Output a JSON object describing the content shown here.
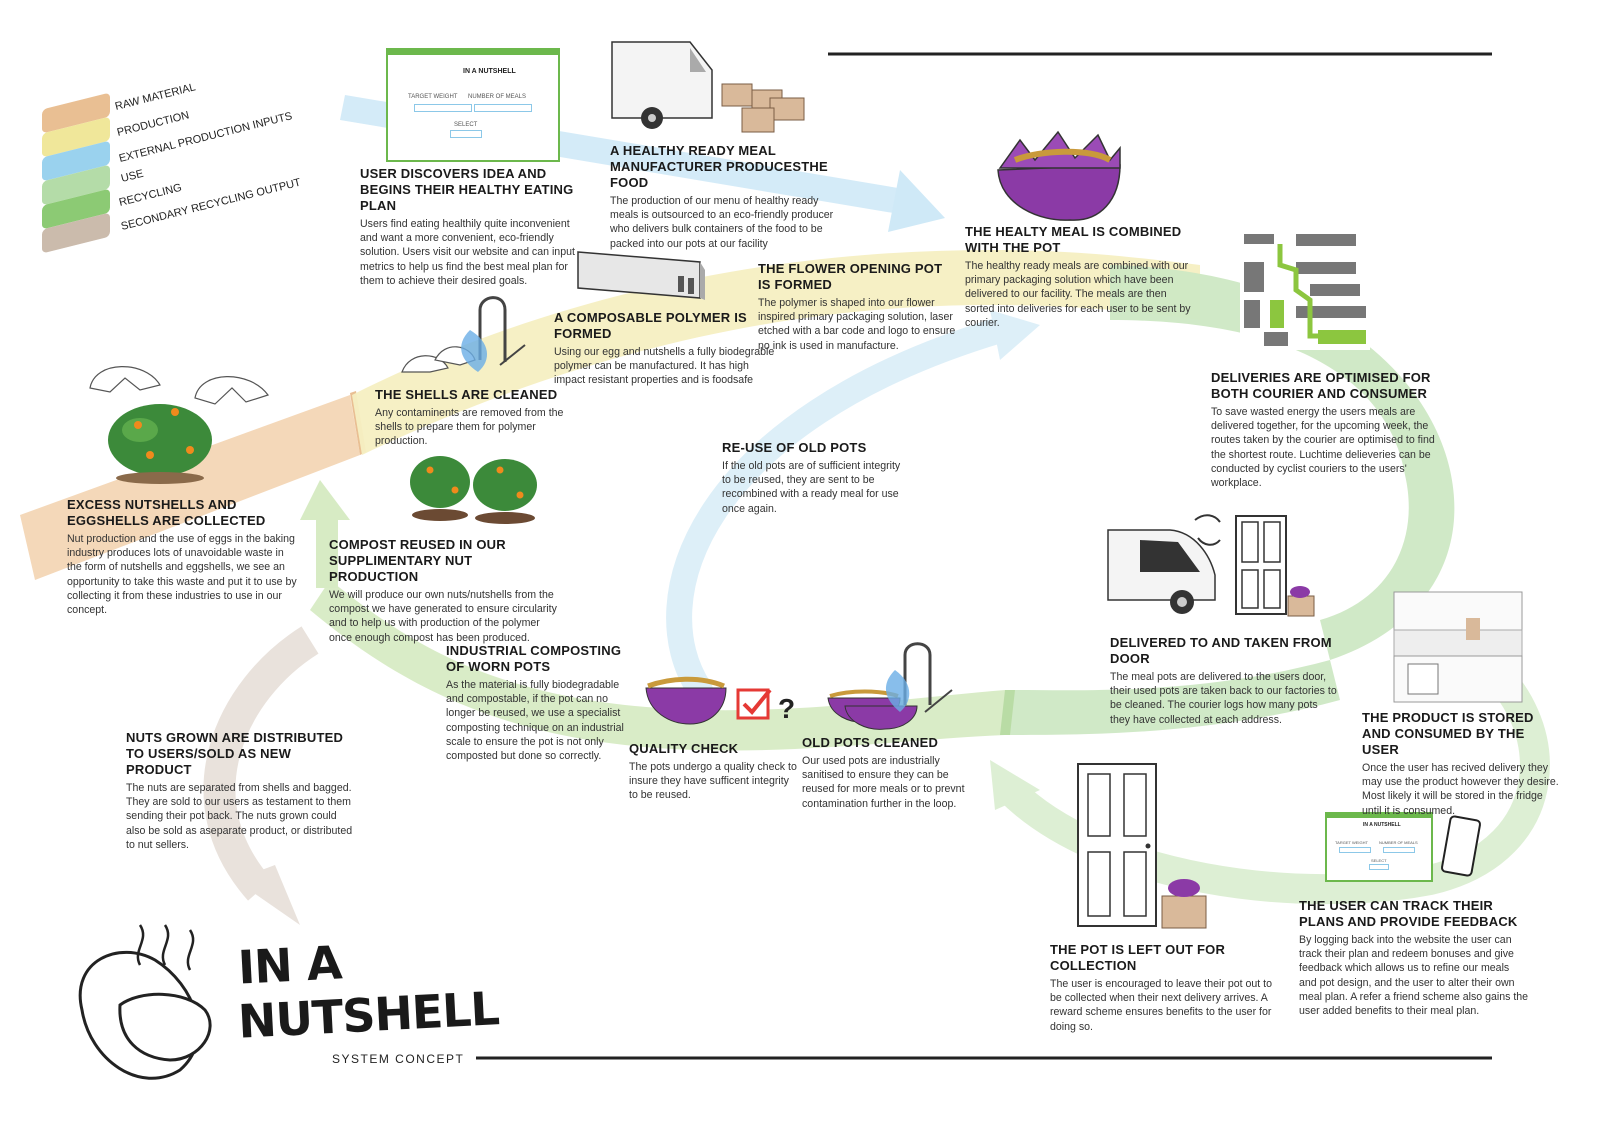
{
  "legend": {
    "items": [
      {
        "label": "RAW MATERIAL",
        "color": "#e9bf93"
      },
      {
        "label": "PRODUCTION",
        "color": "#f0e79a"
      },
      {
        "label": "EXTERNAL PRODUCTION INPUTS",
        "color": "#9ad2ee"
      },
      {
        "label": "USE",
        "color": "#b4dca8"
      },
      {
        "label": "RECYCLING",
        "color": "#8cca74"
      },
      {
        "label": "SECONDARY RECYCLING OUTPUT",
        "color": "#cbbbac"
      }
    ]
  },
  "ui_mockup": {
    "logo_text": "IN A NUTSHELL",
    "field1_label": "TARGET WEIGHT",
    "field2_label": "NUMBER OF MEALS",
    "button_label": "SELECT"
  },
  "phone_mockup": {
    "logo_text": "IN A NUTSHELL",
    "field1_label": "TARGET WEIGHT",
    "field2_label": "NUMBER OF MEALS",
    "button_label": "SELECT"
  },
  "steps": {
    "user_discovers": {
      "title": "USER DISCOVERS IDEA AND BEGINS THEIR HEALTHY EATING PLAN",
      "text": "Users find eating healthily quite inconvenient and want a more convenient, eco-friendly solution. Users visit our website and can input metrics to help us find the best meal plan for them to achieve their desired goals."
    },
    "manufacturer": {
      "title": "A HEALTHY READY MEAL MANUFACTURER PRODUCESTHE FOOD",
      "text": "The production of our menu of healthy ready meals is outsourced to an eco-friendly producer who delivers bulk containers of the food to be packed into our pots at our facility"
    },
    "meal_combined": {
      "title": "THE HEALTY MEAL IS COMBINED WITH THE POT",
      "text": "The healthy ready meals are combined with our primary packaging solution which have been delivered to our facility. The meals are then sorted into deliveries for each user to be sent by courier."
    },
    "pot_formed": {
      "title": "THE FLOWER OPENING POT IS FORMED",
      "text": "The polymer is shaped into our flower inspired primary packaging solution, laser etched with a bar code and logo to ensure no ink is used in manufacture."
    },
    "polymer_formed": {
      "title": "A COMPOSABLE POLYMER IS FORMED",
      "text": "Using our egg and nutshells a fully biodegrable polymer can be manufactured. It has high impact resistant properties and is foodsafe"
    },
    "shells_cleaned": {
      "title": "THE SHELLS ARE CLEANED",
      "text": "Any contaminents are removed from the shells to prepare them for polymer production."
    },
    "excess_collected": {
      "title": "EXCESS NUTSHELLS AND EGGSHELLS ARE COLLECTED",
      "text": "Nut production and the use of eggs in the baking industry produces lots of unavoidable waste in the form of nutshells and eggshells, we see an opportunity to take this waste and put it to use by collecting it from these industries to use in our concept."
    },
    "compost_reused": {
      "title": "COMPOST REUSED IN OUR SUPPLIMENTARY NUT PRODUCTION",
      "text": "We will produce our own nuts/nutshells from the compost we have generated to ensure circularity and to help us with production of the polymer once enough compost has been produced."
    },
    "reuse_pots": {
      "title": "RE-USE OF OLD POTS",
      "text": "If the old pots are of sufficient integrity to be reused, they are sent to be recombined with a ready meal for use once again."
    },
    "deliveries_optimised": {
      "title": "DELIVERIES ARE OPTIMISED FOR BOTH COURIER AND CONSUMER",
      "text": "To save wasted energy the users meals are delivered together, for the upcoming week, the routes taken by the courier are optimised to find the shortest route. Luchtime delieveries can be conducted by cyclist couriers to the users' workplace."
    },
    "delivered_door": {
      "title": "DELIVERED TO AND TAKEN FROM DOOR",
      "text": "The meal pots are delivered to the users door, their used pots are taken back to our factories to be cleaned. The courier logs how many pots they have collected at each address."
    },
    "stored_consumed": {
      "title": "THE PRODUCT IS STORED AND CONSUMED BY THE USER",
      "text": "Once the user has recived delivery they may use the product however they desire. Most likely it will be stored in the fridge until it is consumed."
    },
    "industrial_composting": {
      "title": "INDUSTRIAL COMPOSTING OF WORN POTS",
      "text": "As the material is fully biodegradable and compostable, if the pot can no longer be reused, we use a specialist composting technique on an industrial scale to ensure the pot is not only composted but done so correctly."
    },
    "quality_check": {
      "title": "QUALITY CHECK",
      "text": "The pots undergo a quality check to insure they have sufficent integrity to be reused."
    },
    "old_pots_cleaned": {
      "title": "OLD POTS CLEANED",
      "text": "Our used pots are industrially sanitised to ensure they can be reused for more meals or to prevnt contamination further in the loop."
    },
    "nuts_distributed": {
      "title": "NUTS GROWN ARE DISTRIBUTED TO USERS/SOLD AS NEW PRODUCT",
      "text": "The nuts are separated from shells and bagged. They are sold to our users as testament to them sending their pot back. The nuts grown could also be sold as aseparate product, or distributed to nut sellers."
    },
    "pot_left_out": {
      "title": "THE POT IS LEFT OUT FOR COLLECTION",
      "text": "The user is encouraged to leave their pot out to be collected when their next delivery arrives. A reward scheme ensures benefits to the user for doing so."
    },
    "track_plans": {
      "title": "THE USER CAN TRACK THEIR PLANS AND PROVIDE FEEDBACK",
      "text": "By logging back into the website the user can track their plan and redeem bonuses and give feedback which allows us to refine our meals and pot design, and the user to alter their own meal plan. A refer a friend scheme also gains the user added benefits to their meal plan."
    }
  },
  "quality_mark": "?",
  "logo": {
    "line1": "IN A",
    "line2": "NUTSHELL",
    "subtitle": "SYSTEM CONCEPT"
  }
}
